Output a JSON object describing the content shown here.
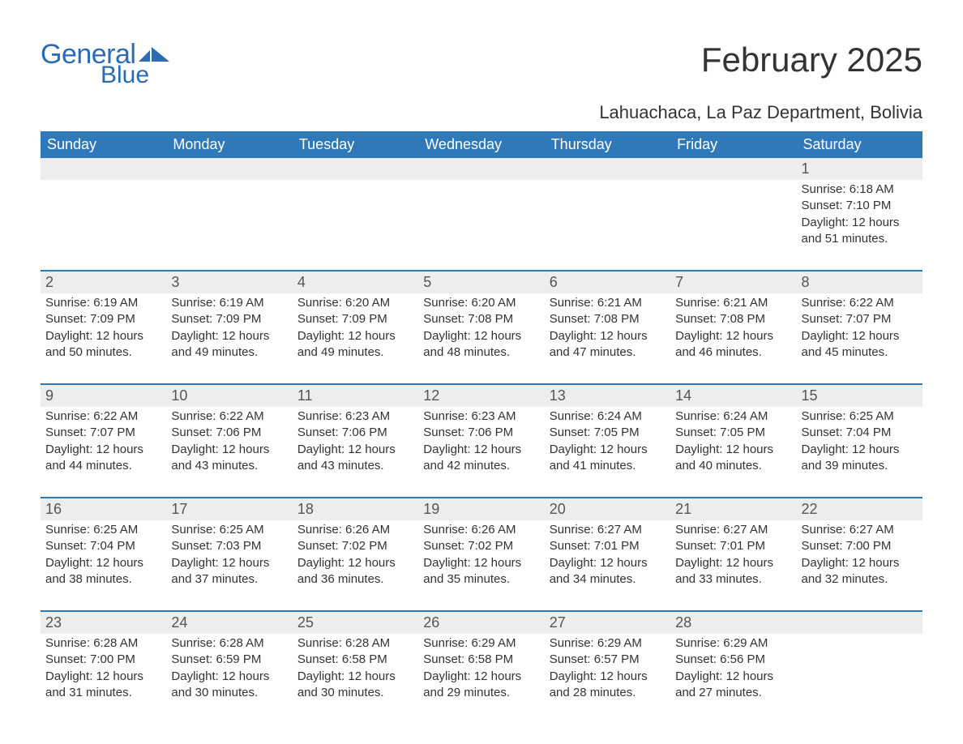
{
  "logo": {
    "text1": "General",
    "text2": "Blue"
  },
  "title": "February 2025",
  "location": "Lahuachaca, La Paz Department, Bolivia",
  "colors": {
    "header_bg": "#3079b9",
    "header_text": "#ffffff",
    "daynum_bg": "#ededed",
    "week_divider": "#3079b9",
    "body_text": "#333333",
    "logo_color": "#2a6bb3"
  },
  "weekdays": [
    "Sunday",
    "Monday",
    "Tuesday",
    "Wednesday",
    "Thursday",
    "Friday",
    "Saturday"
  ],
  "weeks": [
    [
      null,
      null,
      null,
      null,
      null,
      null,
      {
        "n": "1",
        "sr": "6:18 AM",
        "ss": "7:10 PM",
        "dl": "12 hours and 51 minutes."
      }
    ],
    [
      {
        "n": "2",
        "sr": "6:19 AM",
        "ss": "7:09 PM",
        "dl": "12 hours and 50 minutes."
      },
      {
        "n": "3",
        "sr": "6:19 AM",
        "ss": "7:09 PM",
        "dl": "12 hours and 49 minutes."
      },
      {
        "n": "4",
        "sr": "6:20 AM",
        "ss": "7:09 PM",
        "dl": "12 hours and 49 minutes."
      },
      {
        "n": "5",
        "sr": "6:20 AM",
        "ss": "7:08 PM",
        "dl": "12 hours and 48 minutes."
      },
      {
        "n": "6",
        "sr": "6:21 AM",
        "ss": "7:08 PM",
        "dl": "12 hours and 47 minutes."
      },
      {
        "n": "7",
        "sr": "6:21 AM",
        "ss": "7:08 PM",
        "dl": "12 hours and 46 minutes."
      },
      {
        "n": "8",
        "sr": "6:22 AM",
        "ss": "7:07 PM",
        "dl": "12 hours and 45 minutes."
      }
    ],
    [
      {
        "n": "9",
        "sr": "6:22 AM",
        "ss": "7:07 PM",
        "dl": "12 hours and 44 minutes."
      },
      {
        "n": "10",
        "sr": "6:22 AM",
        "ss": "7:06 PM",
        "dl": "12 hours and 43 minutes."
      },
      {
        "n": "11",
        "sr": "6:23 AM",
        "ss": "7:06 PM",
        "dl": "12 hours and 43 minutes."
      },
      {
        "n": "12",
        "sr": "6:23 AM",
        "ss": "7:06 PM",
        "dl": "12 hours and 42 minutes."
      },
      {
        "n": "13",
        "sr": "6:24 AM",
        "ss": "7:05 PM",
        "dl": "12 hours and 41 minutes."
      },
      {
        "n": "14",
        "sr": "6:24 AM",
        "ss": "7:05 PM",
        "dl": "12 hours and 40 minutes."
      },
      {
        "n": "15",
        "sr": "6:25 AM",
        "ss": "7:04 PM",
        "dl": "12 hours and 39 minutes."
      }
    ],
    [
      {
        "n": "16",
        "sr": "6:25 AM",
        "ss": "7:04 PM",
        "dl": "12 hours and 38 minutes."
      },
      {
        "n": "17",
        "sr": "6:25 AM",
        "ss": "7:03 PM",
        "dl": "12 hours and 37 minutes."
      },
      {
        "n": "18",
        "sr": "6:26 AM",
        "ss": "7:02 PM",
        "dl": "12 hours and 36 minutes."
      },
      {
        "n": "19",
        "sr": "6:26 AM",
        "ss": "7:02 PM",
        "dl": "12 hours and 35 minutes."
      },
      {
        "n": "20",
        "sr": "6:27 AM",
        "ss": "7:01 PM",
        "dl": "12 hours and 34 minutes."
      },
      {
        "n": "21",
        "sr": "6:27 AM",
        "ss": "7:01 PM",
        "dl": "12 hours and 33 minutes."
      },
      {
        "n": "22",
        "sr": "6:27 AM",
        "ss": "7:00 PM",
        "dl": "12 hours and 32 minutes."
      }
    ],
    [
      {
        "n": "23",
        "sr": "6:28 AM",
        "ss": "7:00 PM",
        "dl": "12 hours and 31 minutes."
      },
      {
        "n": "24",
        "sr": "6:28 AM",
        "ss": "6:59 PM",
        "dl": "12 hours and 30 minutes."
      },
      {
        "n": "25",
        "sr": "6:28 AM",
        "ss": "6:58 PM",
        "dl": "12 hours and 30 minutes."
      },
      {
        "n": "26",
        "sr": "6:29 AM",
        "ss": "6:58 PM",
        "dl": "12 hours and 29 minutes."
      },
      {
        "n": "27",
        "sr": "6:29 AM",
        "ss": "6:57 PM",
        "dl": "12 hours and 28 minutes."
      },
      {
        "n": "28",
        "sr": "6:29 AM",
        "ss": "6:56 PM",
        "dl": "12 hours and 27 minutes."
      },
      null
    ]
  ],
  "labels": {
    "sunrise": "Sunrise:",
    "sunset": "Sunset:",
    "daylight": "Daylight:"
  }
}
